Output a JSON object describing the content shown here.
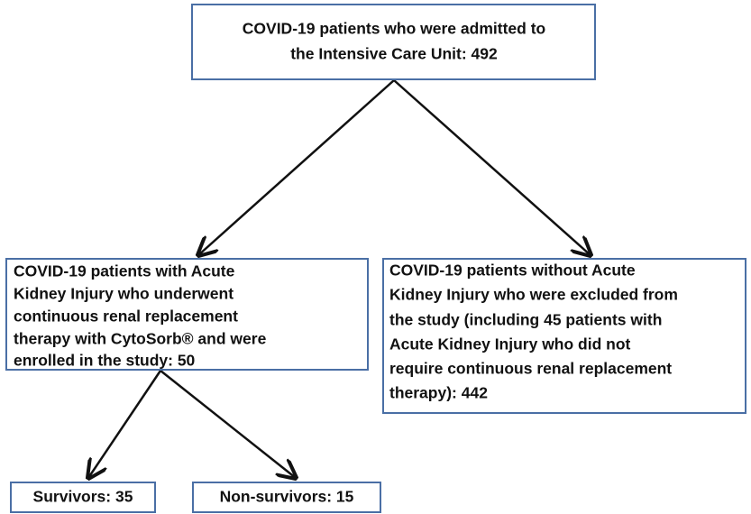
{
  "nodes": [
    {
      "lines": [
        "COVID-19 patients who were admitted to",
        "the Intensive Care Unit: 492"
      ]
    },
    {
      "lines": [
        "COVID-19 patients with Acute",
        "Kidney Injury who underwent",
        "continuous renal replacement",
        "therapy with CytoSorb® and were",
        "enrolled in the study: 50"
      ]
    },
    {
      "lines": [
        "COVID-19 patients without Acute",
        "Kidney Injury who were excluded from",
        "the study (including 45 patients with",
        "Acute Kidney Injury who did not",
        "require continuous renal replacement",
        "therapy): 442"
      ]
    },
    {
      "lines": [
        "Survivors: 35"
      ]
    },
    {
      "lines": [
        "Non-survivors: 15"
      ]
    }
  ]
}
